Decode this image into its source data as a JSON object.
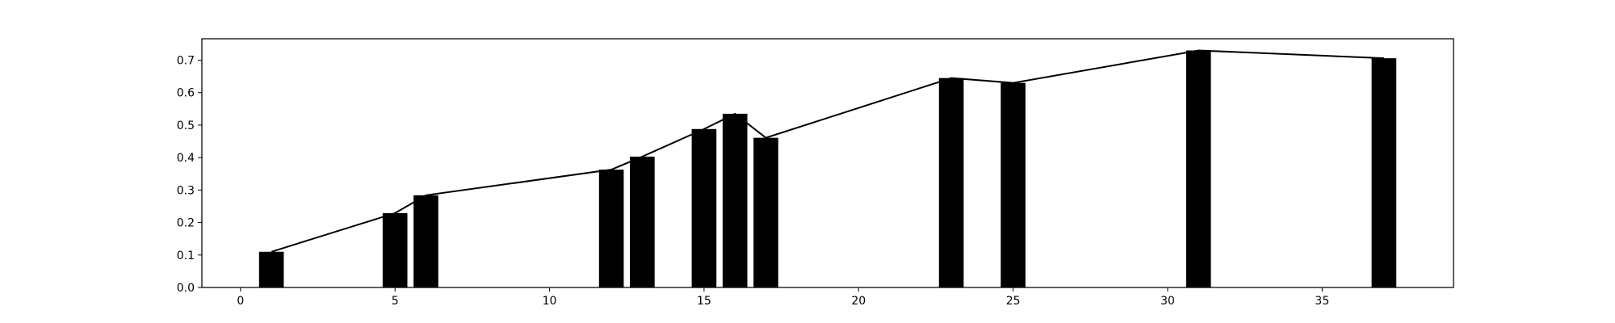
{
  "chart_data": {
    "type": "bar",
    "title": "",
    "xlabel": "",
    "ylabel": "",
    "xlim": [
      -1.25,
      39.25
    ],
    "ylim": [
      0,
      0.766
    ],
    "grid": false,
    "bar_color": "#000000",
    "line_color": "#000000",
    "x_ticks": [
      0,
      5,
      10,
      15,
      20,
      25,
      30,
      35
    ],
    "x_tick_labels": [
      "0",
      "5",
      "10",
      "15",
      "20",
      "25",
      "30",
      "35"
    ],
    "y_ticks": [
      0.0,
      0.1,
      0.2,
      0.3,
      0.4,
      0.5,
      0.6,
      0.7
    ],
    "y_tick_labels": [
      "0.0",
      "0.1",
      "0.2",
      "0.3",
      "0.4",
      "0.5",
      "0.6",
      "0.7"
    ],
    "x": [
      1,
      5,
      6,
      12,
      13,
      15,
      16,
      17,
      23,
      25,
      31,
      37
    ],
    "values": [
      0.11,
      0.229,
      0.284,
      0.363,
      0.403,
      0.488,
      0.535,
      0.461,
      0.645,
      0.63,
      0.73,
      0.706
    ],
    "bar_width": 0.8,
    "series": [
      {
        "type": "bar",
        "x": [
          1,
          5,
          6,
          12,
          13,
          15,
          16,
          17,
          23,
          25,
          31,
          37
        ],
        "values": [
          0.11,
          0.229,
          0.284,
          0.363,
          0.403,
          0.488,
          0.535,
          0.461,
          0.645,
          0.63,
          0.73,
          0.706
        ]
      },
      {
        "type": "line",
        "x": [
          1,
          5,
          6,
          12,
          13,
          15,
          16,
          17,
          23,
          25,
          31,
          37
        ],
        "values": [
          0.11,
          0.229,
          0.284,
          0.363,
          0.403,
          0.488,
          0.535,
          0.461,
          0.645,
          0.63,
          0.73,
          0.706
        ]
      }
    ]
  }
}
